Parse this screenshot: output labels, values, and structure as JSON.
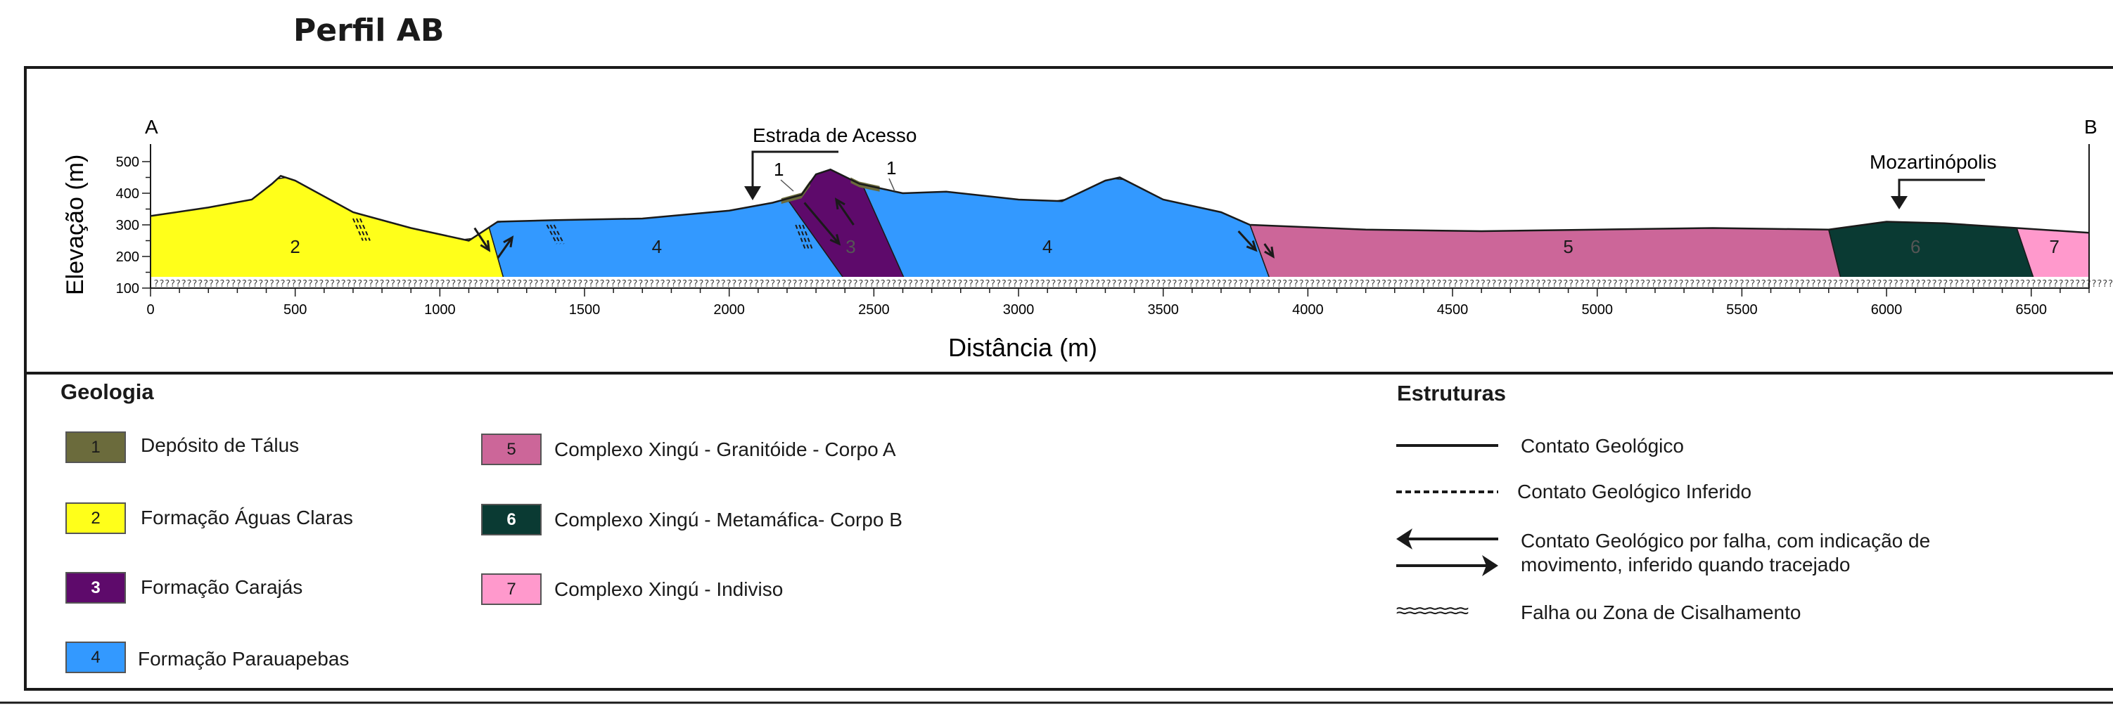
{
  "title": "Perfil AB",
  "profile": {
    "endpoint_a": "A",
    "endpoint_b": "B",
    "ylabel": "Elevação (m)",
    "xlabel": "Distância (m)",
    "x_ticks": [
      "0",
      "500",
      "1000",
      "1500",
      "2000",
      "2500",
      "3000",
      "3500",
      "4000",
      "4500",
      "5000",
      "5500",
      "6000",
      "6500"
    ],
    "x_tick_values": [
      0,
      500,
      1000,
      1500,
      2000,
      2500,
      3000,
      3500,
      4000,
      4500,
      5000,
      5500,
      6000,
      6500
    ],
    "y_ticks": [
      "100",
      "200",
      "300",
      "400",
      "500"
    ],
    "y_tick_values": [
      100,
      200,
      300,
      400,
      500
    ],
    "xlim": [
      0,
      6700
    ],
    "ylim": [
      100,
      500
    ],
    "annotations": {
      "estrada": "Estrada de Acesso",
      "mozartinopolis": "Mozartinópolis"
    },
    "unit_labels": [
      {
        "label": "2",
        "x": 500
      },
      {
        "label": "4",
        "x": 1750
      },
      {
        "label": "3",
        "x": 2420
      },
      {
        "label": "4",
        "x": 3100
      },
      {
        "label": "5",
        "x": 4900
      },
      {
        "label": "6",
        "x": 6100
      },
      {
        "label": "7",
        "x": 6580
      }
    ],
    "talus_labels": [
      "1",
      "1"
    ],
    "surface_profile": {
      "x": [
        0,
        200,
        350,
        420,
        450,
        500,
        700,
        900,
        1100,
        1200,
        1400,
        1700,
        2000,
        2150,
        2250,
        2300,
        2350,
        2450,
        2600,
        2750,
        3000,
        3150,
        3300,
        3350,
        3500,
        3700,
        3800,
        4200,
        4600,
        5000,
        5400,
        5800,
        6000,
        6200,
        6450,
        6700
      ],
      "elevation": [
        328,
        355,
        380,
        430,
        455,
        440,
        340,
        290,
        250,
        310,
        315,
        320,
        345,
        370,
        395,
        460,
        475,
        430,
        400,
        405,
        380,
        375,
        440,
        450,
        380,
        340,
        300,
        285,
        280,
        285,
        290,
        285,
        310,
        305,
        290,
        275
      ]
    }
  },
  "legend": {
    "geologia_heading": "Geologia",
    "estruturas_heading": "Estruturas",
    "units": [
      {
        "num": "1",
        "label": "Depósito de Tálus",
        "color": "#6b6b3c"
      },
      {
        "num": "2",
        "label": "Formação Águas Claras",
        "color": "#ffff1a"
      },
      {
        "num": "3",
        "label": "Formação Carajás",
        "color": "#5e0a6b"
      },
      {
        "num": "4",
        "label": "Formação Parauapebas",
        "color": "#3399ff"
      },
      {
        "num": "5",
        "label": "Complexo Xingú - Granitóide - Corpo A",
        "color": "#cc6699"
      },
      {
        "num": "6",
        "label": "Complexo Xingú - Metamáfica- Corpo B",
        "color": "#0a3a33"
      },
      {
        "num": "7",
        "label": "Complexo Xingú - Indiviso",
        "color": "#ff99cc"
      }
    ],
    "structures": [
      {
        "label": "Contato Geológico"
      },
      {
        "label": "Contato Geológico Inferido"
      },
      {
        "label_line1": "Contato Geológico por falha, com indicação de",
        "label_line2": "movimento, inferido quando tracejado"
      },
      {
        "label": "Falha ou Zona de Cisalhamento"
      }
    ],
    "shear_symbol": "≈≈≈≈≈≈≈"
  }
}
